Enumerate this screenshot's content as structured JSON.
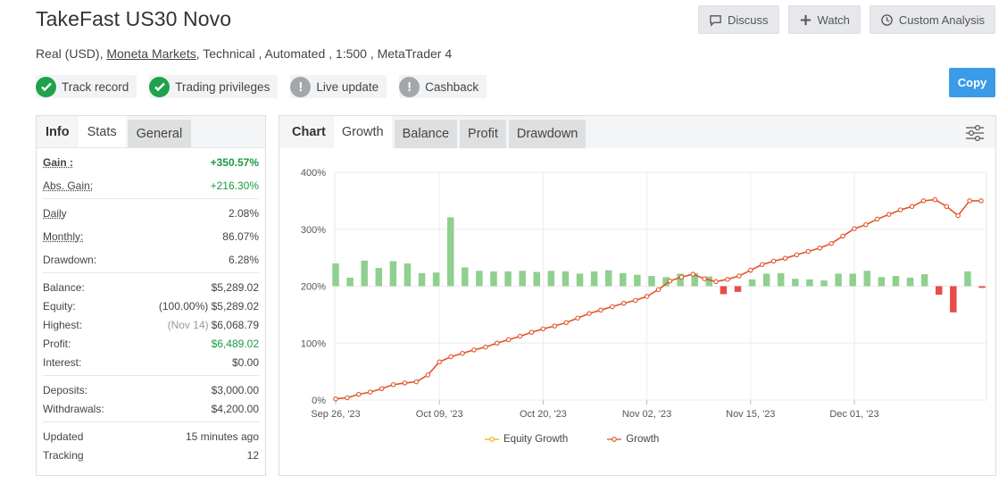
{
  "header": {
    "title": "TakeFast US30 Novo",
    "account_type": "Real (USD),",
    "broker": "Moneta Markets",
    "details": ", Technical , Automated , 1:500 , MetaTrader 4"
  },
  "actions": {
    "discuss": "Discuss",
    "watch": "Watch",
    "custom_analysis": "Custom Analysis",
    "copy": "Copy"
  },
  "badges": [
    {
      "label": "Track record",
      "status": "ok"
    },
    {
      "label": "Trading privileges",
      "status": "ok"
    },
    {
      "label": "Live update",
      "status": "warn"
    },
    {
      "label": "Cashback",
      "status": "warn"
    }
  ],
  "left_tabs": {
    "info": "Info",
    "stats": "Stats",
    "general": "General"
  },
  "stats": {
    "gain_label": "Gain :",
    "gain": "+350.57%",
    "abs_gain_label": "Abs. Gain:",
    "abs_gain": "+216.30%",
    "daily_label": "Daily",
    "daily": "2.08%",
    "monthly_label": "Monthly:",
    "monthly": "86.07%",
    "drawdown_label": "Drawdown:",
    "drawdown": "6.28%",
    "balance_label": "Balance:",
    "balance": "$5,289.02",
    "equity_label": "Equity:",
    "equity_pct": "(100.00%)",
    "equity": "$5,289.02",
    "highest_label": "Highest:",
    "highest_date": "(Nov 14)",
    "highest": "$6,068.79",
    "profit_label": "Profit:",
    "profit": "$6,489.02",
    "interest_label": "Interest:",
    "interest": "$0.00",
    "deposits_label": "Deposits:",
    "deposits": "$3,000.00",
    "withdrawals_label": "Withdrawals:",
    "withdrawals": "$4,200.00",
    "updated_label": "Updated",
    "updated": "15 minutes ago",
    "tracking_label": "Tracking",
    "tracking": "12"
  },
  "chart_tabs": {
    "chart": "Chart",
    "growth": "Growth",
    "balance": "Balance",
    "profit": "Profit",
    "drawdown": "Drawdown"
  },
  "icons": {
    "discuss": "comment-icon",
    "watch": "plus-icon",
    "custom": "clock-icon",
    "settings": "sliders-icon",
    "ok": "check-icon",
    "warn": "exclamation-icon"
  },
  "colors": {
    "growth_line": "#e0562a",
    "equity_line": "#f2b01e",
    "bar_positive": "#8fd08f",
    "bar_negative": "#e84c4c",
    "copy": "#3a9be8"
  },
  "chart_data": {
    "type": "line",
    "title": "",
    "xlabel": "",
    "ylabel": "",
    "ylim": [
      0,
      400
    ],
    "y_ticks": [
      "0%",
      "100%",
      "200%",
      "300%",
      "400%"
    ],
    "x_ticks": [
      "Sep 26, '23",
      "Oct 09, '23",
      "Oct 20, '23",
      "Nov 02, '23",
      "Nov 15, '23",
      "Dec 01, '23"
    ],
    "x_tick_index": [
      0,
      9,
      18,
      27,
      36,
      45
    ],
    "legend": [
      "Equity Growth",
      "Growth"
    ],
    "series": [
      {
        "name": "Growth",
        "values": [
          2,
          4,
          10,
          14,
          20,
          27,
          30,
          32,
          44,
          67,
          76,
          82,
          88,
          93,
          100,
          106,
          112,
          119,
          125,
          130,
          136,
          144,
          152,
          158,
          164,
          170,
          175,
          182,
          194,
          209,
          216,
          221,
          213,
          208,
          212,
          218,
          228,
          238,
          244,
          249,
          255,
          261,
          267,
          275,
          288,
          301,
          308,
          318,
          326,
          334,
          340,
          350,
          352,
          340,
          324,
          350,
          350
        ],
        "index_scale": 1
      }
    ],
    "daily_bars": {
      "name": "Daily change (baseline 200%)",
      "values": [
        40,
        15,
        45,
        32,
        44,
        40,
        23,
        24,
        121,
        33,
        27,
        26,
        26,
        27,
        25,
        27,
        26,
        22,
        26,
        28,
        23,
        20,
        18,
        16,
        22,
        23,
        17,
        -14,
        -10,
        12,
        22,
        23,
        13,
        12,
        10,
        22,
        22,
        27,
        16,
        18,
        15,
        21,
        -15,
        -46,
        26,
        -3
      ]
    }
  }
}
